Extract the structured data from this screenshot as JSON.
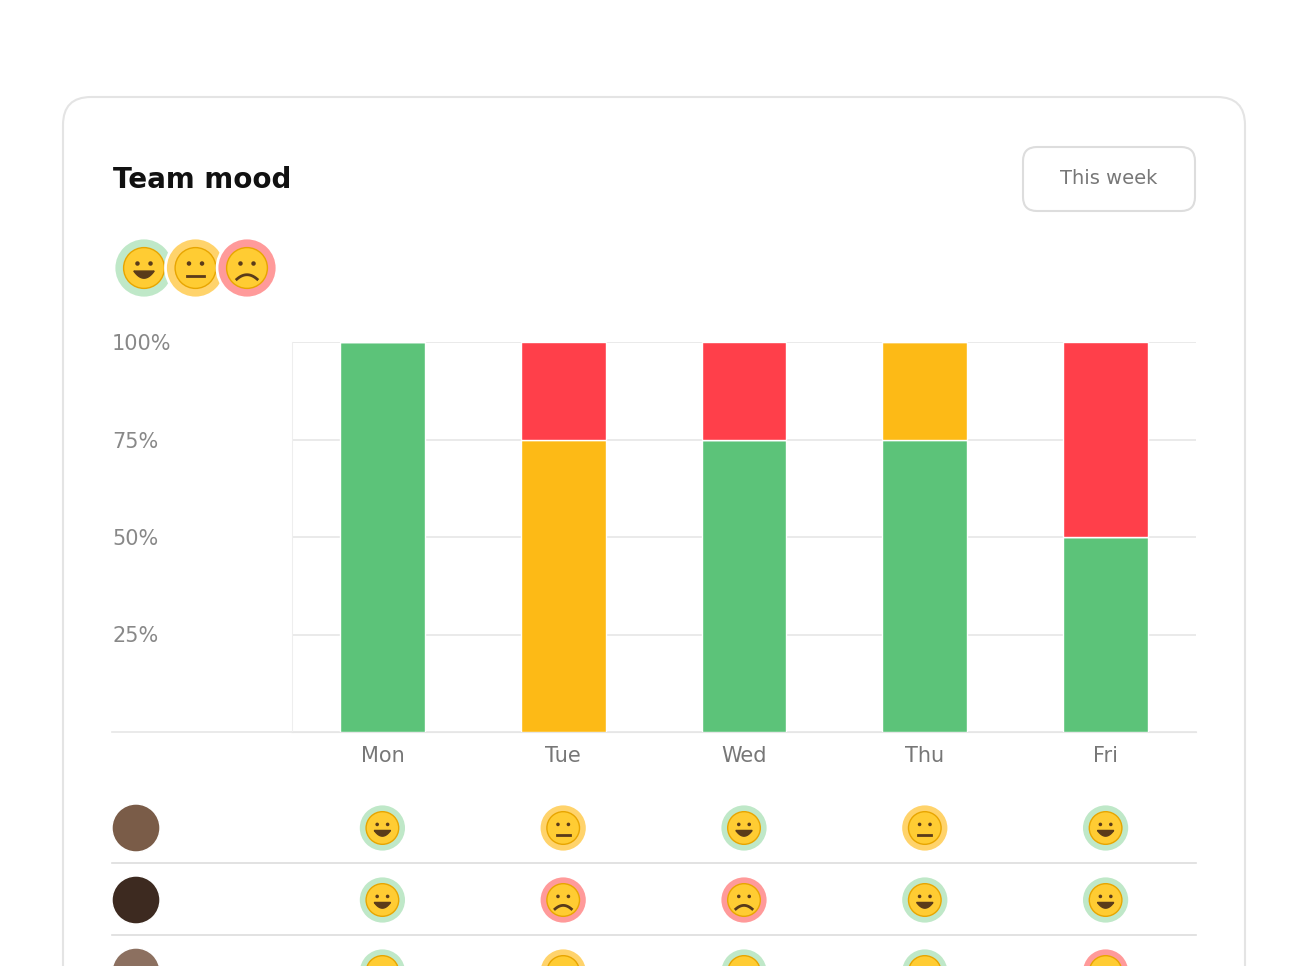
{
  "chart_data": {
    "type": "bar",
    "title": "Team mood",
    "period": "This week",
    "categories": [
      "Mon",
      "Tue",
      "Wed",
      "Thu",
      "Fri"
    ],
    "series": [
      {
        "color": "#5cc379",
        "values": [
          100,
          0,
          75,
          75,
          50
        ]
      },
      {
        "color": "#fdba16",
        "values": [
          0,
          75,
          0,
          25,
          0
        ]
      },
      {
        "color": "#ff3f4a",
        "values": [
          0,
          25,
          25,
          0,
          50
        ]
      }
    ],
    "stacked": true,
    "ylim": [
      0,
      100
    ],
    "yticks": [
      {
        "value": 25,
        "label": "25%"
      },
      {
        "value": 50,
        "label": "50%"
      },
      {
        "value": 75,
        "label": "75%"
      },
      {
        "value": 100,
        "label": "100%"
      }
    ],
    "grid": true,
    "moods": [
      [
        0,
        1,
        0,
        1,
        0
      ],
      [
        0,
        2,
        2,
        0,
        0
      ],
      [
        0,
        1,
        0,
        0,
        2
      ]
    ]
  }
}
